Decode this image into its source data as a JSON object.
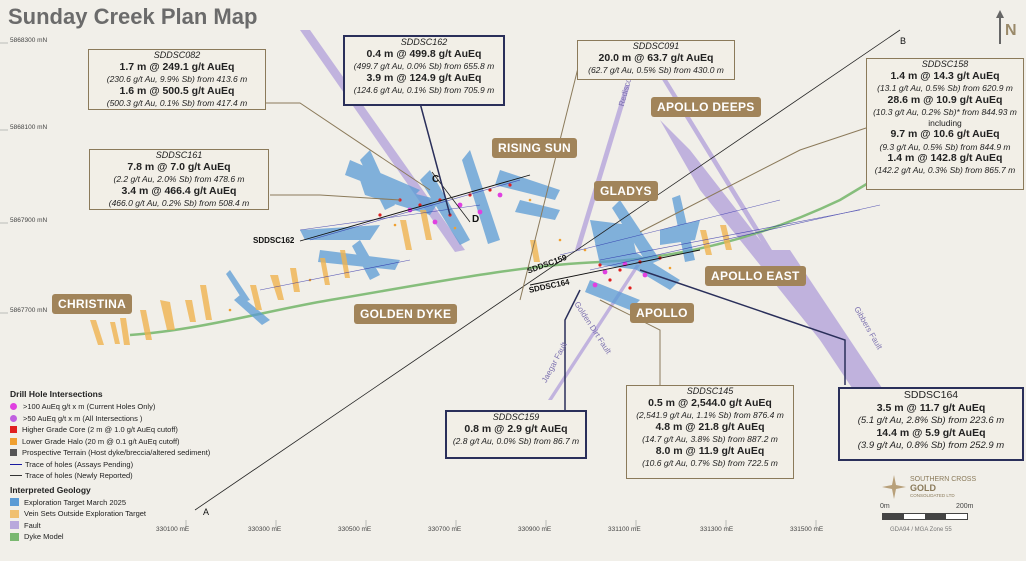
{
  "title": "Sunday Creek Plan Map",
  "north_label": "N",
  "grid": {
    "northings": [
      "5868300 mN",
      "5868100 mN",
      "5867900 mN",
      "5867700 mN"
    ],
    "eastings": [
      "330100 mE",
      "330300 mE",
      "330500 mE",
      "330700 mE",
      "330900 mE",
      "331100 mE",
      "331300 mE",
      "331500 mE"
    ]
  },
  "section_labels": [
    "A",
    "B",
    "C",
    "D"
  ],
  "prospects": [
    "RISING SUN",
    "APOLLO DEEPS",
    "GLADYS",
    "APOLLO EAST",
    "APOLLO",
    "GOLDEN DYKE",
    "CHRISTINA"
  ],
  "hole_labels": [
    "SDDSC162",
    "SDDSC159",
    "SDDSC164"
  ],
  "faults": [
    "Rediscovery Fault",
    "Golden Dirt Fault",
    "Jaegar Fault",
    "Gibbers Fault"
  ],
  "boxes": {
    "sddsc082": {
      "hole": "SDDSC082",
      "l1": "1.7 m @ 249.1 g/t AuEq",
      "l2": "(230.6 g/t Au, 9.9% Sb) from 413.6 m",
      "l3": "1.6 m @ 500.5 g/t AuEq",
      "l4": "(500.3 g/t Au, 0.1% Sb) from 417.4 m"
    },
    "sddsc161": {
      "hole": "SDDSC161",
      "l1": "7.8 m @ 7.0 g/t AuEq",
      "l2": "(2.2 g/t Au, 2.0% Sb) from 478.6 m",
      "l3": "3.4 m @ 466.4 g/t AuEq",
      "l4": "(466.0 g/t Au, 0.2% Sb) from 508.4 m"
    },
    "sddsc162": {
      "hole": "SDDSC162",
      "l1": "0.4 m @ 499.8 g/t AuEq",
      "l2": "(499.7 g/t Au, 0.0% Sb) from 655.8 m",
      "l3": "3.9 m @ 124.9 g/t AuEq",
      "l4": "(124.6 g/t Au, 0.1% Sb) from 705.9 m"
    },
    "sddsc091": {
      "hole": "SDDSC091",
      "l1": "20.0 m @ 63.7 g/t AuEq",
      "l2": "(62.7 g/t Au, 0.5% Sb) from 430.0 m"
    },
    "sddsc158": {
      "hole": "SDDSC158",
      "l1": "1.4 m @ 14.3 g/t AuEq",
      "l2": "(13.1 g/t Au, 0.5% Sb) from 620.9 m",
      "l3": "28.6 m @ 10.9 g/t AuEq",
      "l4": "(10.3 g/t Au, 0.2% Sb)* from 844.93 m",
      "l5": "including",
      "l6": "9.7 m @ 10.6 g/t AuEq",
      "l7": "(9.3 g/t Au, 0.5% Sb) from 844.9 m",
      "l8": "1.4 m @ 142.8 g/t AuEq",
      "l9": "(142.2 g/t Au, 0.3% Sb) from 865.7 m"
    },
    "sddsc159": {
      "hole": "SDDSC159",
      "l1": "0.8 m @ 2.9 g/t AuEq",
      "l2": "(2.8 g/t Au, 0.0% Sb) from 86.7 m"
    },
    "sddsc145": {
      "hole": "SDDSC145",
      "l1": "0.5 m @ 2,544.0 g/t AuEq",
      "l2": "(2,541.9 g/t Au, 1.1% Sb) from 876.4 m",
      "l3": "4.8 m @ 21.8 g/t AuEq",
      "l4": "(14.7 g/t Au, 3.8% Sb) from 887.2 m",
      "l5": "8.0 m @ 11.9 g/t AuEq",
      "l6": "(10.6 g/t Au, 0.7% Sb) from 722.5 m"
    },
    "sddsc164": {
      "hole": "SDDSC164",
      "l1": "3.5 m @ 11.7 g/t AuEq",
      "l2": "(5.1 g/t Au, 2.8% Sb) from 223.6 m",
      "l3": "14.4 m @ 5.9 g/t AuEq",
      "l4": "(3.9 g/t Au, 0.8% Sb) from 252.9 m"
    }
  },
  "legend": {
    "title1": "Drill Hole Intersections",
    "items1": [
      {
        "label": ">100 AuEq g/t x m (Current Holes Only)",
        "color": "#e040e0"
      },
      {
        "label": ">50 AuEq g/t x m (All Intersections )",
        "color": "#c060e0"
      },
      {
        "label": "Higher Grade Core (2 m @ 1.0 g/t AuEq cutoff)",
        "color": "#e02020"
      },
      {
        "label": "Lower Grade Halo (20 m @ 0.1 g/t AuEq cutoff)",
        "color": "#f0a030"
      },
      {
        "label": "Prospective Terrain (Host dyke/breccia/altered sediment)",
        "color": "#555555"
      },
      {
        "label": "Trace of holes (Assays Pending)",
        "color": "#1a1aa0"
      },
      {
        "label": "Trace of holes (Newly Reported)",
        "color": "#333333"
      }
    ],
    "title2": "Interpreted Geology",
    "items2": [
      {
        "label": "Exploration Target March 2025",
        "color": "#5b9bd5"
      },
      {
        "label": "Vein Sets Outside Exploration Target",
        "color": "#f0c070"
      },
      {
        "label": "Fault",
        "color": "#b8a8dc"
      },
      {
        "label": "Dyke Model",
        "color": "#7ab870"
      }
    ]
  },
  "logo": {
    "line1": "SOUTHERN CROSS",
    "line2": "GOLD",
    "line3": "CONSOLIDATED LTD"
  },
  "scale": {
    "left": "0m",
    "right": "200m",
    "datum": "GDA94 / MGA Zone 55"
  },
  "colors": {
    "prospect_tag": "#a1845a",
    "dark_border": "#2a2f5a",
    "fault": "#b8a8dc",
    "dyke": "#7ab870",
    "target": "#5b9bd5"
  }
}
